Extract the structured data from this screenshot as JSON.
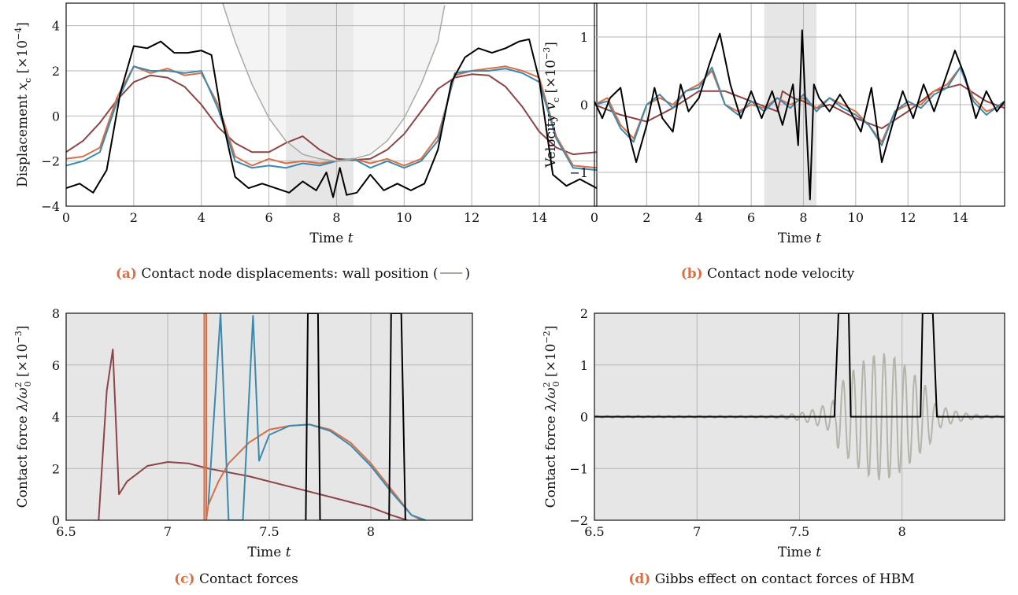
{
  "colors": {
    "orange": "#d96f45",
    "blue": "#3b8aad",
    "darkred": "#8c4446",
    "black": "#000000",
    "wall": "#a8aca0",
    "gibbs": "#b3b5a8",
    "shade_light": "#f2f2f2",
    "shade_dark": "#e6e6e6",
    "grid": "#b4b4b4"
  },
  "chart_data": [
    {
      "type": "line",
      "xlabel": "Time",
      "xlabel_var": "t",
      "ylabel": "Displacement",
      "ylabel_var": "x",
      "ylabel_sub": "c",
      "yscale_text": "[×10",
      "yscale_exp": "−4",
      "xlim": [
        0,
        15.7
      ],
      "ylim": [
        -4,
        5
      ],
      "xticks": [
        "0",
        "2",
        "4",
        "6",
        "8",
        "10",
        "12",
        "14"
      ],
      "yticks": [
        "−4",
        "−2",
        "0",
        "2",
        "4"
      ],
      "grid": true,
      "shaded_bands": [
        [
          6.5,
          8.5
        ]
      ],
      "caption_label": "(a)",
      "caption": "Contact node displacements: wall position (",
      "caption_end": ")",
      "series": [
        {
          "color": "darkred",
          "x": [
            0,
            0.5,
            1,
            1.5,
            2,
            2.5,
            3,
            3.5,
            4,
            4.5,
            5,
            5.5,
            6,
            6.5,
            7,
            7.5,
            8,
            8.5,
            9,
            9.5,
            10,
            10.5,
            11,
            11.5,
            12,
            12.5,
            13,
            13.5,
            14,
            14.5,
            15,
            15.7
          ],
          "y": [
            -1.6,
            -1.1,
            -0.3,
            0.7,
            1.5,
            1.8,
            1.7,
            1.3,
            0.5,
            -0.5,
            -1.2,
            -1.6,
            -1.6,
            -1.2,
            -0.9,
            -1.5,
            -1.9,
            -1.95,
            -1.9,
            -1.5,
            -0.8,
            0.2,
            1.2,
            1.7,
            1.85,
            1.8,
            1.3,
            0.4,
            -0.7,
            -1.4,
            -1.7,
            -1.6
          ]
        },
        {
          "color": "orange",
          "x": [
            0,
            0.5,
            1,
            1.5,
            2,
            2.5,
            3,
            3.5,
            4,
            4.5,
            5,
            5.5,
            6,
            6.5,
            7,
            7.5,
            8,
            8.5,
            9,
            9.5,
            10,
            10.5,
            11,
            11.5,
            12,
            12.5,
            13,
            13.5,
            14,
            14.5,
            15,
            15.7
          ],
          "y": [
            -1.9,
            -1.8,
            -1.4,
            0.8,
            2.2,
            1.9,
            2.1,
            1.8,
            1.9,
            0.5,
            -1.8,
            -2.2,
            -1.9,
            -2.1,
            -2,
            -2.1,
            -2,
            -1.9,
            -2.1,
            -1.9,
            -2.2,
            -1.9,
            -0.9,
            1.8,
            2,
            2.1,
            2.2,
            2,
            1.7,
            -0.9,
            -2.2,
            -2.3
          ]
        },
        {
          "color": "blue",
          "x": [
            0,
            0.5,
            1,
            1.5,
            2,
            2.5,
            3,
            3.5,
            4,
            4.5,
            5,
            5.5,
            6,
            6.5,
            7,
            7.5,
            8,
            8.5,
            9,
            9.5,
            10,
            10.5,
            11,
            11.5,
            12,
            12.5,
            13,
            13.5,
            14,
            14.5,
            15,
            15.7
          ],
          "y": [
            -2.2,
            -2.0,
            -1.6,
            0.6,
            2.2,
            2.0,
            2.0,
            1.9,
            2.0,
            0.3,
            -2.0,
            -2.3,
            -2.2,
            -2.3,
            -2.1,
            -2.2,
            -2.0,
            -1.9,
            -2.3,
            -2.0,
            -2.3,
            -2.0,
            -1.1,
            1.9,
            2.0,
            2.0,
            2.1,
            1.9,
            1.5,
            -1.0,
            -2.3,
            -2.4
          ]
        },
        {
          "color": "black",
          "x": [
            0,
            0.4,
            0.8,
            1.2,
            1.6,
            2,
            2.4,
            2.8,
            3.2,
            3.6,
            4,
            4.3,
            4.6,
            5,
            5.4,
            5.8,
            6.2,
            6.6,
            7,
            7.4,
            7.7,
            7.9,
            8.1,
            8.3,
            8.6,
            9,
            9.4,
            9.8,
            10.2,
            10.6,
            11,
            11.4,
            11.8,
            12.2,
            12.6,
            13,
            13.4,
            13.7,
            14,
            14.4,
            14.8,
            15.2,
            15.7
          ],
          "y": [
            -3.2,
            -3.0,
            -3.4,
            -2.4,
            1.0,
            3.1,
            3.0,
            3.3,
            2.8,
            2.8,
            2.9,
            2.7,
            0,
            -2.7,
            -3.2,
            -3.0,
            -3.2,
            -3.4,
            -2.9,
            -3.3,
            -2.5,
            -3.6,
            -2.3,
            -3.5,
            -3.4,
            -2.6,
            -3.3,
            -3.0,
            -3.3,
            -3.0,
            -1.5,
            1.5,
            2.6,
            3.0,
            2.8,
            3.0,
            3.3,
            3.4,
            1.6,
            -2.6,
            -3.1,
            -2.8,
            -3.2
          ]
        },
        {
          "color": "wall",
          "x": [
            4.5,
            5,
            5.5,
            6,
            6.5,
            7,
            7.5,
            8,
            8.5,
            9,
            9.5,
            10,
            10.5,
            11,
            11.2
          ],
          "y": [
            5.6,
            3.3,
            1.4,
            -0.1,
            -1.1,
            -1.7,
            -1.9,
            -2,
            -1.9,
            -1.7,
            -1.1,
            -0.1,
            1.4,
            3.3,
            4.9
          ]
        }
      ]
    },
    {
      "type": "line",
      "xlabel": "Time",
      "xlabel_var": "t",
      "ylabel": "Velocity",
      "ylabel_var": "v",
      "ylabel_sub": "c",
      "yscale_text": "[×10",
      "yscale_exp": "−3",
      "xlim": [
        0,
        15.7
      ],
      "ylim": [
        -1.5,
        1.5
      ],
      "xticks": [
        "0",
        "2",
        "4",
        "6",
        "8",
        "10",
        "12",
        "14"
      ],
      "yticks": [
        "−1",
        "0",
        "1"
      ],
      "grid": true,
      "shaded_bands": [
        [
          6.5,
          8.5
        ]
      ],
      "caption_label": "(b)",
      "caption": "Contact node velocity",
      "series": [
        {
          "color": "darkred",
          "x": [
            0,
            1,
            2,
            3,
            4,
            5,
            6,
            7,
            7.2,
            7.6,
            8,
            8.5,
            9,
            10,
            11,
            12,
            13,
            14,
            15,
            15.7
          ],
          "y": [
            0,
            -0.15,
            -0.25,
            -0.05,
            0.2,
            0.2,
            0.05,
            -0.1,
            0.2,
            0.1,
            0.05,
            -0.05,
            0,
            -0.2,
            -0.35,
            -0.1,
            0.2,
            0.3,
            0.05,
            -0.05
          ]
        },
        {
          "color": "orange",
          "x": [
            0,
            0.5,
            1,
            1.5,
            2,
            2.5,
            3,
            3.5,
            4,
            4.5,
            5,
            5.5,
            6,
            6.5,
            7,
            7.5,
            8,
            8.5,
            9,
            9.5,
            10,
            10.5,
            11,
            11.5,
            12,
            12.5,
            13,
            13.5,
            14,
            14.5,
            15,
            15.7
          ],
          "y": [
            0,
            0.1,
            -0.3,
            -0.5,
            0,
            0.1,
            0,
            0.2,
            0.3,
            0.5,
            0,
            -0.1,
            0,
            -0.05,
            0.1,
            0,
            0.1,
            -0.05,
            0.1,
            0,
            -0.1,
            -0.3,
            -0.55,
            -0.1,
            0,
            0,
            0.2,
            0.3,
            0.55,
            0.1,
            -0.1,
            0
          ]
        },
        {
          "color": "blue",
          "x": [
            0,
            0.5,
            1,
            1.5,
            2,
            2.5,
            3,
            3.5,
            4,
            4.5,
            5,
            5.5,
            6,
            6.5,
            7,
            7.5,
            8,
            8.5,
            9,
            9.5,
            10,
            10.5,
            11,
            11.5,
            12,
            12.5,
            13,
            13.5,
            14,
            14.5,
            15,
            15.7
          ],
          "y": [
            0,
            0.05,
            -0.35,
            -0.55,
            0,
            0.15,
            -0.05,
            0.2,
            0.25,
            0.55,
            0,
            -0.15,
            0.05,
            -0.1,
            0.1,
            -0.05,
            0.15,
            -0.1,
            0.1,
            -0.05,
            -0.15,
            -0.3,
            -0.6,
            -0.1,
            0.05,
            -0.05,
            0.15,
            0.25,
            0.55,
            0.05,
            -0.15,
            0.05
          ]
        },
        {
          "color": "black",
          "x": [
            0,
            0.3,
            0.6,
            1,
            1.3,
            1.6,
            2,
            2.3,
            2.6,
            3,
            3.3,
            3.6,
            4,
            4.4,
            4.8,
            5.2,
            5.6,
            6,
            6.4,
            6.8,
            7.2,
            7.6,
            7.8,
            7.95,
            8.1,
            8.25,
            8.4,
            8.6,
            9,
            9.4,
            9.8,
            10.2,
            10.6,
            11,
            11.4,
            11.8,
            12.2,
            12.6,
            13,
            13.4,
            13.8,
            14.2,
            14.6,
            15,
            15.4,
            15.7
          ],
          "y": [
            0.05,
            -0.2,
            0.1,
            0.25,
            -0.4,
            -0.85,
            -0.3,
            0.25,
            -0.2,
            -0.4,
            0.3,
            -0.1,
            0.1,
            0.6,
            1.05,
            0.3,
            -0.2,
            0.2,
            -0.2,
            0.2,
            -0.3,
            0.3,
            -0.6,
            1.1,
            -0.2,
            -1.4,
            0.3,
            0.1,
            -0.1,
            0.15,
            -0.1,
            -0.4,
            0.25,
            -0.85,
            -0.3,
            0.2,
            -0.2,
            0.3,
            -0.1,
            0.35,
            0.8,
            0.4,
            -0.2,
            0.2,
            -0.1,
            0.05
          ]
        }
      ]
    },
    {
      "type": "line",
      "xlabel": "Time",
      "xlabel_var": "t",
      "ylabel": "Contact force",
      "ylabel_var": "λ/ω",
      "ylabel_sub": "0",
      "ylabel_sup": "2",
      "yscale_text": "[×10",
      "yscale_exp": "−3",
      "xlim": [
        6.5,
        8.5
      ],
      "ylim": [
        0,
        8
      ],
      "xticks": [
        "6.5",
        "7",
        "7.5",
        "8"
      ],
      "yticks": [
        "0",
        "2",
        "4",
        "6",
        "8"
      ],
      "grid": true,
      "background": "shade_dark",
      "caption_label": "(c)",
      "caption": "Contact forces",
      "series": [
        {
          "color": "darkred",
          "x": [
            6.66,
            6.7,
            6.73,
            6.76,
            6.8,
            6.9,
            7.0,
            7.1,
            7.2,
            7.4,
            7.6,
            7.8,
            8.0,
            8.1,
            8.18
          ],
          "y": [
            0,
            5.0,
            6.6,
            1.0,
            1.5,
            2.1,
            2.25,
            2.2,
            2.0,
            1.7,
            1.3,
            0.9,
            0.5,
            0.2,
            0
          ]
        },
        {
          "color": "orange",
          "x": [
            7.18,
            7.18,
            7.19,
            7.19,
            7.2,
            7.25,
            7.3,
            7.4,
            7.5,
            7.6,
            7.7,
            7.8,
            7.9,
            8.0,
            8.1,
            8.2,
            8.25
          ],
          "y": [
            0,
            8,
            8,
            0,
            0.6,
            1.5,
            2.2,
            3.0,
            3.5,
            3.65,
            3.7,
            3.5,
            3.0,
            2.2,
            1.2,
            0.2,
            0
          ]
        },
        {
          "color": "blue",
          "x": [
            7.2,
            7.26,
            7.3,
            7.37,
            7.42,
            7.45,
            7.5,
            7.6,
            7.7,
            7.8,
            7.9,
            8.0,
            8.1,
            8.2,
            8.27
          ],
          "y": [
            0.6,
            8,
            0,
            0,
            7.9,
            2.3,
            3.3,
            3.65,
            3.7,
            3.45,
            2.9,
            2.1,
            1.1,
            0.2,
            0
          ]
        },
        {
          "color": "black",
          "x": [
            7.68,
            7.69,
            7.74,
            7.75,
            8.09,
            8.1,
            8.15,
            8.17
          ],
          "y": [
            0,
            8,
            8,
            0,
            0,
            8,
            8,
            0
          ]
        }
      ]
    },
    {
      "type": "line",
      "xlabel": "Time",
      "xlabel_var": "t",
      "ylabel": "Contact force",
      "ylabel_var": "λ/ω",
      "ylabel_sub": "0",
      "ylabel_sup": "2",
      "yscale_text": "[×10",
      "yscale_exp": "−2",
      "xlim": [
        6.5,
        8.5
      ],
      "ylim": [
        -2,
        2
      ],
      "xticks": [
        "6.5",
        "7",
        "7.5",
        "8"
      ],
      "yticks": [
        "−2",
        "−1",
        "0",
        "1",
        "2"
      ],
      "grid": true,
      "background": "shade_dark",
      "caption_label": "(d)",
      "caption": "Gibbs effect on contact forces of HBM",
      "series": [
        {
          "color": "black",
          "x": [
            6.5,
            7.67,
            7.69,
            7.74,
            7.75,
            8.09,
            8.1,
            8.15,
            8.17,
            8.5
          ],
          "y": [
            0,
            0,
            2,
            2,
            0,
            0,
            2,
            2,
            0,
            0
          ]
        }
      ]
    }
  ]
}
